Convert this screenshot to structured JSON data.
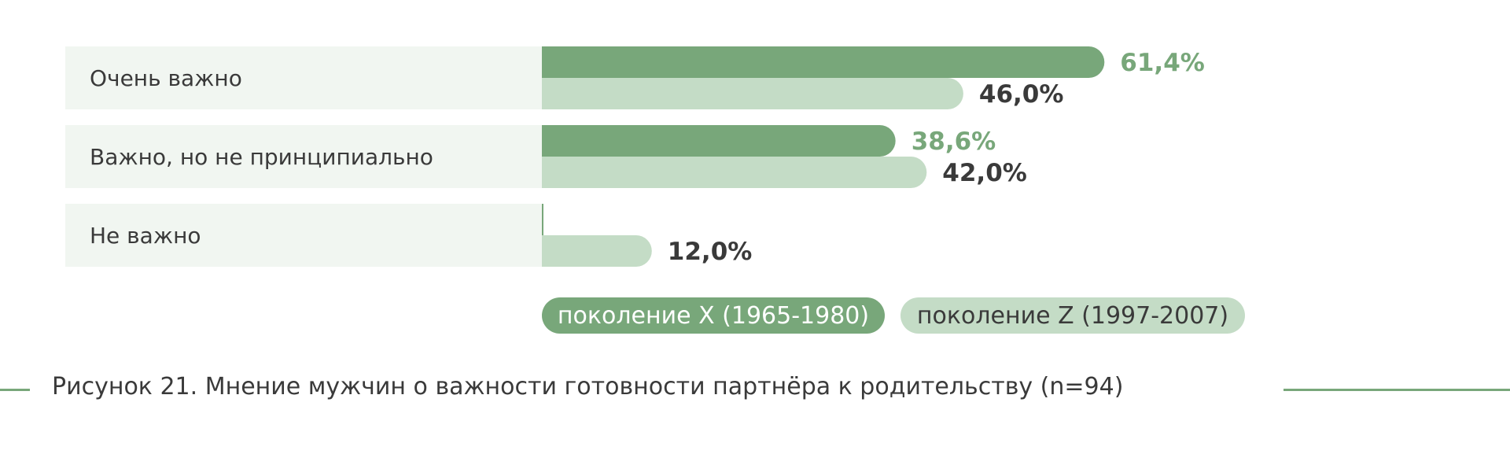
{
  "chart_data": {
    "type": "bar",
    "orientation": "horizontal",
    "categories": [
      "Очень важно",
      "Важно, но не принципиально",
      "Не важно"
    ],
    "series": [
      {
        "name": "поколение X (1965-1980)",
        "values": [
          61.4,
          38.6,
          0
        ],
        "labels": [
          "61,4%",
          "38,6%",
          ""
        ],
        "color": "#78a77a",
        "label_color": "#78a77a"
      },
      {
        "name": "поколение Z (1997-2007)",
        "values": [
          46.0,
          42.0,
          12.0
        ],
        "labels": [
          "46,0%",
          "42,0%",
          "12,0%"
        ],
        "color": "#c4dcc6",
        "label_color": "#3a3a3a"
      }
    ],
    "xlim": [
      0,
      100
    ],
    "grid": false,
    "legend_position": "bottom"
  },
  "colors": {
    "row_background": "#f1f6f1",
    "text": "#3a3a3a",
    "legend_z_text": "#3a3a3a",
    "legend_x_text": "#ffffff",
    "rule": "#78a77a"
  },
  "caption": "Рисунок 21. Мнение мужчин о важности готовности партнёра к родительству (n=94)"
}
